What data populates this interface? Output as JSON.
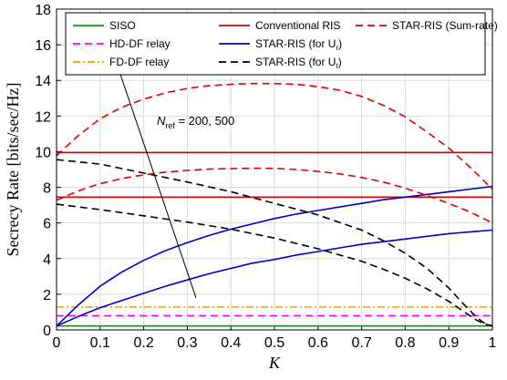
{
  "chart_data": {
    "type": "line",
    "xlabel": "K",
    "ylabel": "Secrecy Rate [bits/sec/Hz]",
    "xlim": [
      0,
      1
    ],
    "ylim": [
      0,
      18
    ],
    "xticks": [
      "0",
      "0.1",
      "0.2",
      "0.3",
      "0.4",
      "0.5",
      "0.6",
      "0.7",
      "0.8",
      "0.9",
      "1"
    ],
    "yticks": [
      "0",
      "2",
      "4",
      "6",
      "8",
      "10",
      "12",
      "14",
      "16",
      "18"
    ],
    "grid": true,
    "legend_position": "top",
    "annotation": {
      "symbol": "N",
      "subscript": "ref",
      "rest": " = 200, 500",
      "arrow_from": [
        0.32,
        1.8
      ],
      "arrow_to": [
        0.14,
        14.8
      ]
    },
    "series": [
      {
        "name": "SISO",
        "color": "#00a000",
        "style": "solid",
        "x": [
          0,
          1
        ],
        "y": [
          0.22,
          0.22
        ]
      },
      {
        "name": "HD-DF relay",
        "color": "#ff00ff",
        "style": "dashed",
        "x": [
          0,
          1
        ],
        "y": [
          0.8,
          0.8
        ]
      },
      {
        "name": "FD-DF relay",
        "color": "#e0a000",
        "style": "dashdot",
        "x": [
          0,
          1
        ],
        "y": [
          1.28,
          1.28
        ]
      },
      {
        "name": "Conventional RIS",
        "color": "#e00000",
        "style": "solid",
        "x": [
          0,
          1
        ],
        "y": [
          9.95,
          9.95
        ]
      },
      {
        "name": "Conventional RIS",
        "legend": false,
        "color": "#e00000",
        "style": "solid",
        "x": [
          0,
          1
        ],
        "y": [
          7.45,
          7.45
        ]
      },
      {
        "name": "STAR-RIS (for U_r)",
        "color": "#0000cc",
        "style": "solid",
        "x": [
          0,
          0.05,
          0.1,
          0.15,
          0.2,
          0.25,
          0.3,
          0.35,
          0.4,
          0.45,
          0.5,
          0.55,
          0.6,
          0.65,
          0.7,
          0.75,
          0.8,
          0.85,
          0.9,
          0.95,
          1
        ],
        "y": [
          0.22,
          1.4,
          2.45,
          3.25,
          3.9,
          4.45,
          4.9,
          5.3,
          5.65,
          5.95,
          6.25,
          6.5,
          6.7,
          6.9,
          7.1,
          7.3,
          7.45,
          7.6,
          7.75,
          7.9,
          8.05
        ]
      },
      {
        "name": "STAR-RIS (for U_r)",
        "legend": false,
        "color": "#0000cc",
        "style": "solid",
        "x": [
          0,
          0.05,
          0.1,
          0.15,
          0.2,
          0.25,
          0.3,
          0.35,
          0.4,
          0.45,
          0.5,
          0.55,
          0.6,
          0.65,
          0.7,
          0.75,
          0.8,
          0.85,
          0.9,
          0.95,
          1
        ],
        "y": [
          0.22,
          0.75,
          1.25,
          1.65,
          2.05,
          2.45,
          2.8,
          3.15,
          3.45,
          3.75,
          3.95,
          4.2,
          4.4,
          4.6,
          4.8,
          4.95,
          5.1,
          5.25,
          5.4,
          5.5,
          5.6
        ]
      },
      {
        "name": "STAR-RIS (for U_t)",
        "color": "#000000",
        "style": "dashed",
        "x": [
          0,
          0.1,
          0.2,
          0.3,
          0.4,
          0.5,
          0.6,
          0.7,
          0.75,
          0.8,
          0.85,
          0.9,
          0.93,
          0.96,
          0.98,
          1
        ],
        "y": [
          9.55,
          9.3,
          8.8,
          8.3,
          7.75,
          7.1,
          6.45,
          5.6,
          5.0,
          4.3,
          3.45,
          2.35,
          1.55,
          0.8,
          0.4,
          0.22
        ]
      },
      {
        "name": "STAR-RIS (for U_t)",
        "legend": false,
        "color": "#000000",
        "style": "dashed",
        "x": [
          0,
          0.1,
          0.2,
          0.3,
          0.4,
          0.5,
          0.6,
          0.7,
          0.75,
          0.8,
          0.85,
          0.9,
          0.93,
          0.96,
          0.98,
          1
        ],
        "y": [
          7.05,
          6.75,
          6.4,
          6.05,
          5.65,
          5.15,
          4.55,
          3.85,
          3.4,
          2.9,
          2.3,
          1.6,
          1.1,
          0.6,
          0.35,
          0.22
        ]
      },
      {
        "name": "STAR-RIS (Sum-rate)",
        "color": "#e00000",
        "style": "dashed",
        "x": [
          0,
          0.05,
          0.1,
          0.15,
          0.2,
          0.25,
          0.3,
          0.35,
          0.4,
          0.45,
          0.5,
          0.55,
          0.6,
          0.65,
          0.7,
          0.75,
          0.8,
          0.85,
          0.9,
          0.95,
          1
        ],
        "y": [
          9.77,
          10.9,
          11.85,
          12.5,
          12.95,
          13.3,
          13.55,
          13.7,
          13.78,
          13.82,
          13.82,
          13.78,
          13.65,
          13.45,
          13.1,
          12.6,
          11.95,
          11.1,
          10.2,
          9.1,
          7.9
        ]
      },
      {
        "name": "STAR-RIS (Sum-rate)",
        "legend": false,
        "color": "#e00000",
        "style": "dashed",
        "x": [
          0,
          0.05,
          0.1,
          0.15,
          0.2,
          0.25,
          0.3,
          0.35,
          0.4,
          0.45,
          0.5,
          0.55,
          0.6,
          0.65,
          0.7,
          0.75,
          0.8,
          0.85,
          0.9,
          0.95,
          1
        ],
        "y": [
          7.27,
          7.8,
          8.2,
          8.5,
          8.7,
          8.85,
          8.95,
          9.02,
          9.05,
          9.07,
          9.06,
          9.0,
          8.9,
          8.75,
          8.55,
          8.3,
          7.95,
          7.55,
          7.1,
          6.6,
          6.0
        ]
      }
    ],
    "legend": [
      {
        "label": "SISO",
        "color": "#00a000",
        "style": "solid"
      },
      {
        "label": "Conventional RIS",
        "color": "#e00000",
        "style": "solid"
      },
      {
        "label": "STAR-RIS (Sum-rate)",
        "color": "#e00000",
        "style": "dashed"
      },
      {
        "label": "HD-DF relay",
        "color": "#ff00ff",
        "style": "dashed"
      },
      {
        "label": "STAR-RIS (for U",
        "sub": "r",
        "tail": ")",
        "color": "#0000cc",
        "style": "solid"
      },
      {
        "label": "FD-DF relay",
        "color": "#e0a000",
        "style": "dashdot"
      },
      {
        "label": "STAR-RIS (for U",
        "sub": "t",
        "tail": ")",
        "color": "#000000",
        "style": "dashed"
      }
    ]
  }
}
